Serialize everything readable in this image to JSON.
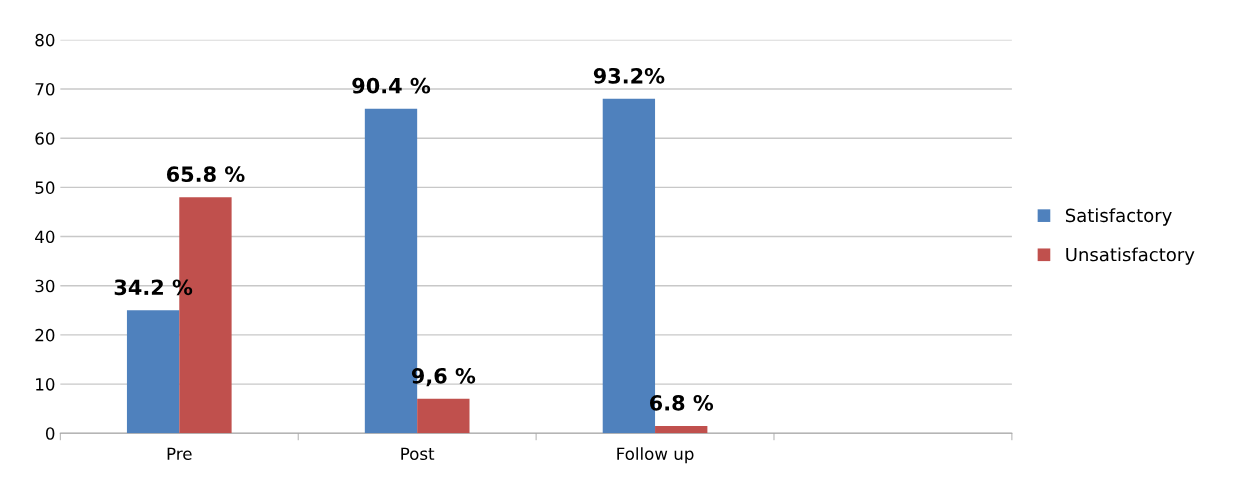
{
  "chart_data": {
    "type": "bar",
    "categories": [
      "Pre",
      "Post",
      "Follow up",
      null
    ],
    "series": [
      {
        "name": "Satisfactory",
        "color": "#4f81bd",
        "values": [
          25,
          66,
          68,
          null
        ]
      },
      {
        "name": "Unsatisfactory",
        "color": "#c0504d",
        "values": [
          48,
          7,
          1.5,
          null
        ]
      }
    ],
    "annotations": [
      {
        "text": "34.2 %",
        "x": "Pre",
        "y": 25
      },
      {
        "text": "65.8 %",
        "x": "Pre",
        "y": 48
      },
      {
        "text": "90.4 %",
        "x": "Post",
        "y": 66
      },
      {
        "text": "9,6 %",
        "x": "Post",
        "y": 7
      },
      {
        "text": "93.2%",
        "x": "Follow up",
        "y": 68
      },
      {
        "text": "6.8 %",
        "x": "Follow up",
        "y": 1.5
      }
    ],
    "ylim": [
      0,
      80
    ],
    "yticks": [
      0,
      10,
      20,
      30,
      40,
      50,
      60,
      70,
      80
    ],
    "grid": "y",
    "legend": "right"
  }
}
